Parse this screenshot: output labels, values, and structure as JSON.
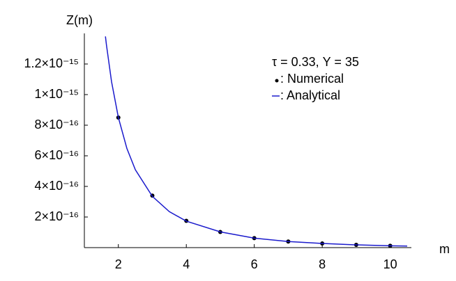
{
  "chart_data": {
    "type": "line",
    "x_label": "m",
    "y_label": "Z(m)",
    "annotation": "τ = 0.33, Y = 35",
    "xlim": [
      1,
      10.5
    ],
    "ylim": [
      0,
      1.4e-15
    ],
    "xticks": [
      2,
      4,
      6,
      8,
      10
    ],
    "yticks": [
      {
        "value": 2e-16,
        "label": "2×10⁻¹⁶"
      },
      {
        "value": 4e-16,
        "label": "4×10⁻¹⁶"
      },
      {
        "value": 6e-16,
        "label": "6×10⁻¹⁶"
      },
      {
        "value": 8e-16,
        "label": "8×10⁻¹⁶"
      },
      {
        "value": 1e-15,
        "label": "1×10⁻¹⁵"
      },
      {
        "value": 1.2e-15,
        "label": "1.2×10⁻¹⁵"
      }
    ],
    "series": [
      {
        "name": ": Numerical",
        "color": "#000000",
        "style": "points",
        "x": [
          2,
          3,
          4,
          5,
          6,
          7,
          8,
          9,
          10
        ],
        "values": [
          8.5e-16,
          3.4e-16,
          1.75e-16,
          1.02e-16,
          6.2e-17,
          4e-17,
          2.7e-17,
          1.8e-17,
          1.2e-17
        ]
      },
      {
        "name": ": Analytical",
        "color": "#1a1acc",
        "style": "line",
        "x": [
          1.62,
          1.65,
          1.8,
          2,
          2.25,
          2.5,
          3,
          3.5,
          4,
          5,
          6,
          7,
          8,
          9,
          10,
          10.5
        ],
        "values": [
          1.38e-15,
          1.324e-15,
          1.084e-15,
          8.51e-16,
          6.49e-16,
          5.09e-16,
          3.35e-16,
          2.35e-16,
          1.73e-16,
          1.03e-16,
          6.2e-17,
          4e-17,
          2.7e-17,
          1.8e-17,
          1.2e-17,
          1e-17
        ]
      }
    ]
  }
}
